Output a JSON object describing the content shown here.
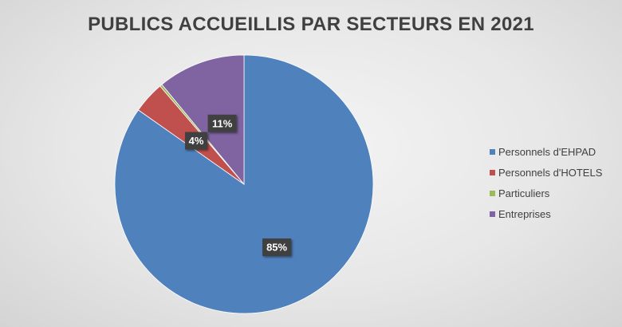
{
  "chart_data": {
    "type": "pie",
    "title": "PUBLICS ACCUEILLIS PAR SECTEURS EN 2021",
    "categories": [
      "Personnels d'EHPAD",
      "Personnels d'HOTELS",
      "Particuliers",
      "Entreprises"
    ],
    "values": [
      85,
      4,
      0.3,
      11
    ],
    "data_labels": [
      "85%",
      "4%",
      "",
      "11%"
    ],
    "colors": [
      "#4f81bd",
      "#c0504d",
      "#9bbb59",
      "#8064a2"
    ],
    "legend_position": "right"
  }
}
